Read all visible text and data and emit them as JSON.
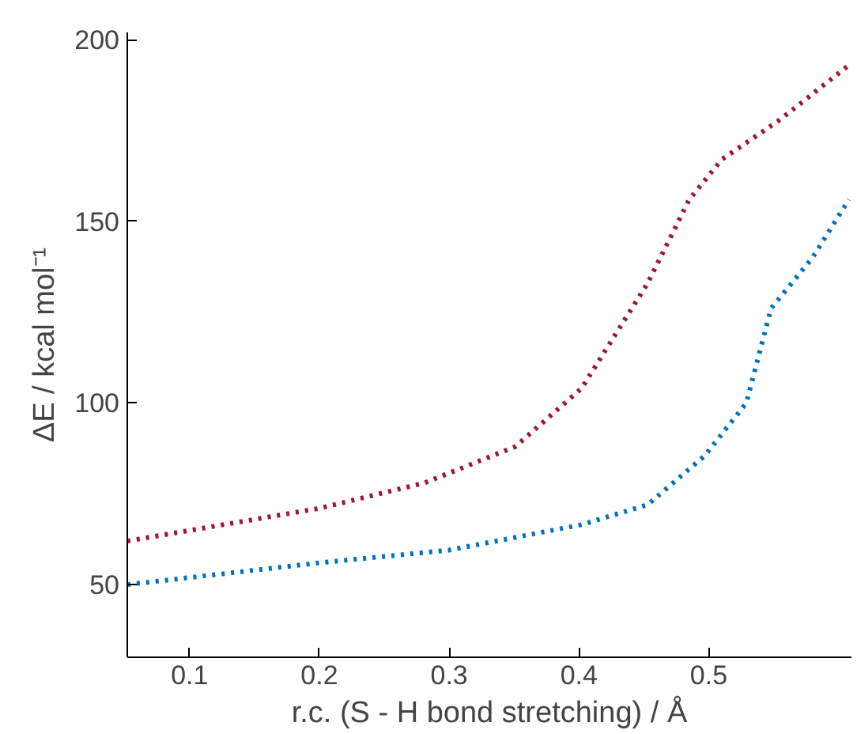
{
  "chart_data": {
    "type": "line",
    "xlabel": "r.c. (S - H bond stretching) / Å",
    "ylabel": "ΔE / kcal mol⁻¹",
    "xlim": [
      0.052,
      0.61
    ],
    "ylim": [
      30,
      202
    ],
    "xticks": [
      0.1,
      0.2,
      0.3,
      0.4,
      0.5
    ],
    "yticks": [
      50,
      100,
      150,
      200
    ],
    "grid": false,
    "line_style": "dotted",
    "marker": "none",
    "series": [
      {
        "color": "#a2142f",
        "x": [
          0.052,
          0.2,
          0.281,
          0.351,
          0.402,
          0.453,
          0.485,
          0.51,
          0.555,
          0.608
        ],
        "values": [
          62,
          71,
          78,
          88,
          104,
          133,
          156,
          167,
          178,
          193
        ]
      },
      {
        "color": "#0072bd",
        "x": [
          0.052,
          0.2,
          0.3,
          0.402,
          0.453,
          0.497,
          0.529,
          0.548,
          0.58,
          0.608
        ],
        "values": [
          50,
          56,
          59.5,
          66.5,
          72,
          85.5,
          100,
          126,
          140,
          156
        ]
      }
    ]
  }
}
